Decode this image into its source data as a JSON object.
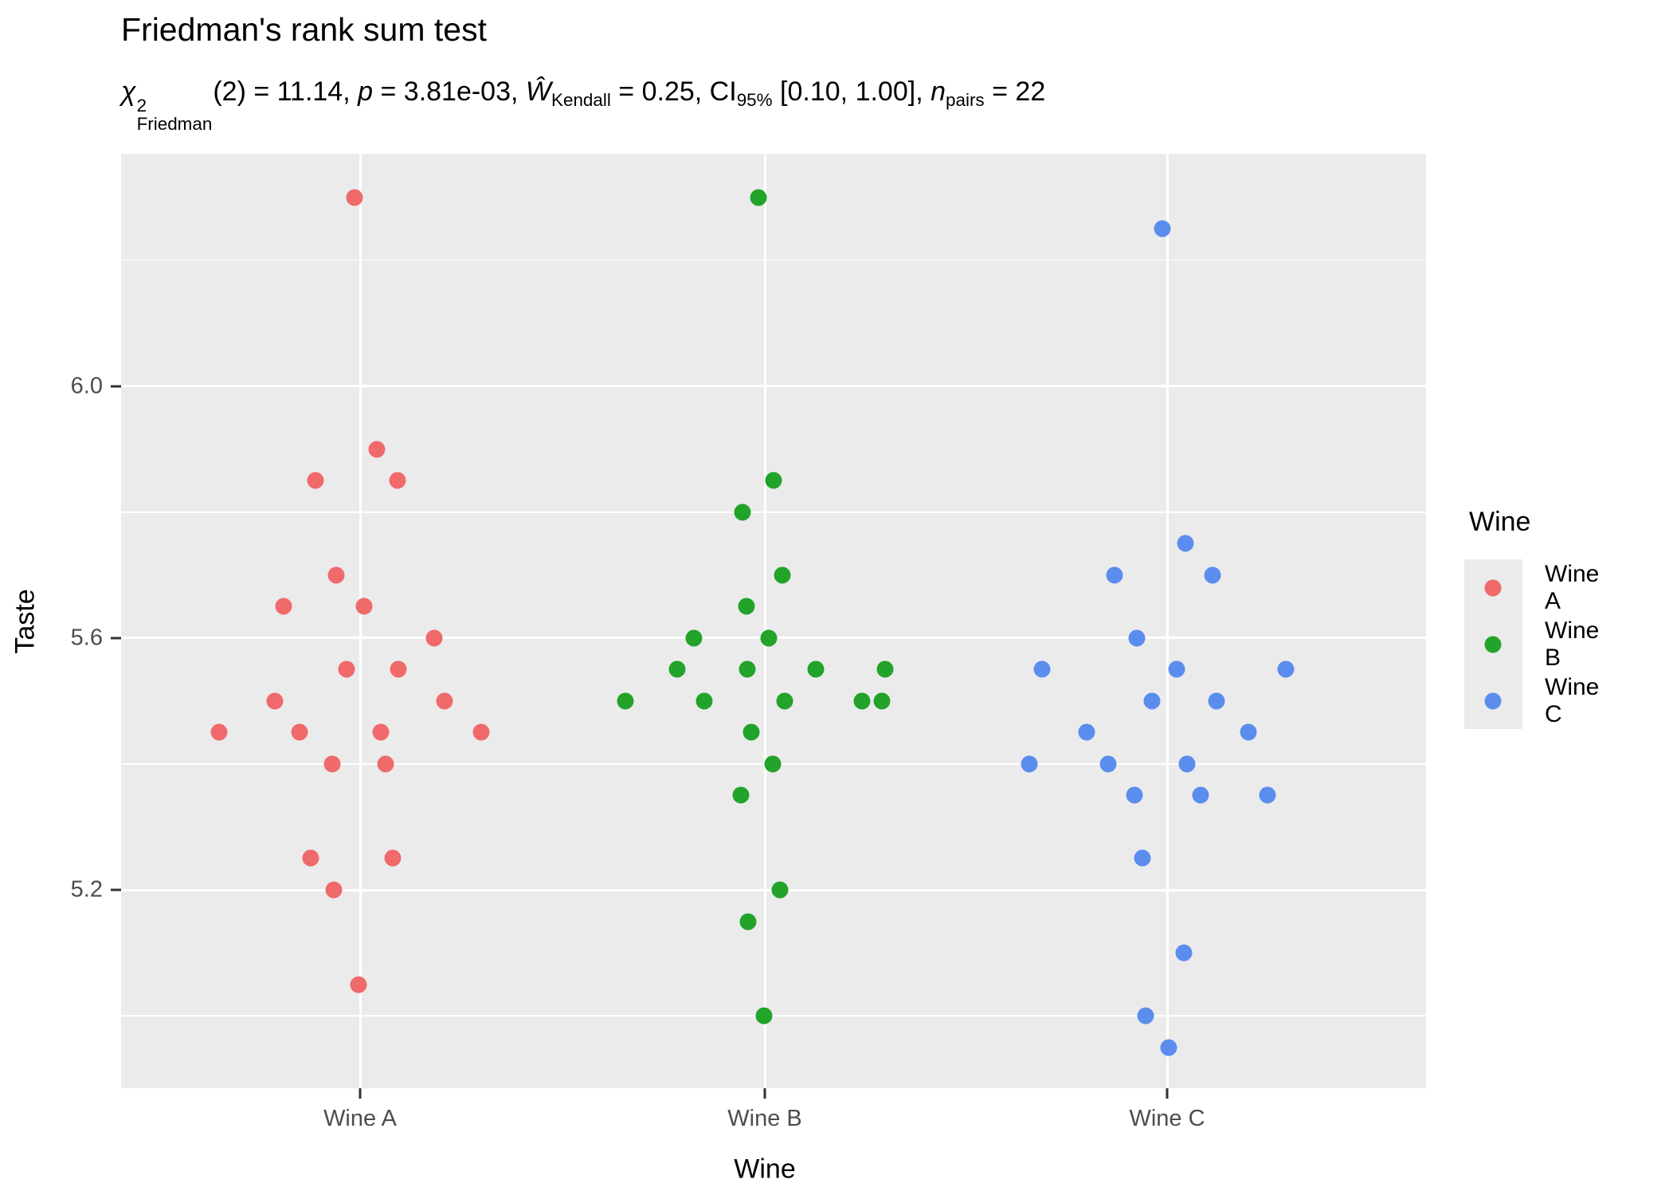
{
  "title": "Friedman's rank sum test",
  "subtitle_parts": [
    {
      "k": "i",
      "t": "χ"
    },
    {
      "k": "stk",
      "sup": "2",
      "sub": "Friedman"
    },
    {
      "k": "n",
      "t": "(2) = 11.14, "
    },
    {
      "k": "i",
      "t": "p"
    },
    {
      "k": "n",
      "t": " = 3.81e-03, "
    },
    {
      "k": "i",
      "t": "Ŵ"
    },
    {
      "k": "sb",
      "t": "Kendall"
    },
    {
      "k": "n",
      "t": " = 0.25, CI"
    },
    {
      "k": "sb",
      "t": "95%"
    },
    {
      "k": "n",
      "t": " [0.10, 1.00], "
    },
    {
      "k": "i",
      "t": "n"
    },
    {
      "k": "sb",
      "t": "pairs"
    },
    {
      "k": "n",
      "t": " = 22"
    }
  ],
  "colors": {
    "panel_bg": "#EBEBEB",
    "grid": "#FFFFFF",
    "tick_label": "#4D4D4D",
    "wine_a": "#F0696B",
    "wine_b": "#22A32A",
    "wine_c": "#5B8DEE"
  },
  "legend": {
    "title": "Wine",
    "items": [
      {
        "label": "Wine A",
        "color": "#F0696B"
      },
      {
        "label": "Wine B",
        "color": "#22A32A"
      },
      {
        "label": "Wine C",
        "color": "#5B8DEE"
      }
    ]
  },
  "chart_data": {
    "type": "scatter",
    "title": "Friedman's rank sum test",
    "xlabel": "Wine",
    "ylabel": "Taste",
    "categories": [
      "Wine A",
      "Wine B",
      "Wine C"
    ],
    "ylim": [
      4.885,
      6.369
    ],
    "y_major_ticks": [
      {
        "label": "6.0",
        "value": 6.0
      },
      {
        "label": "5.6",
        "value": 5.6
      },
      {
        "label": "5.2",
        "value": 5.2
      }
    ],
    "y_minor_gridlines": [
      6.2,
      5.8,
      5.4,
      5.0
    ],
    "grid": "white on grey panel",
    "legend_position": "right",
    "n_per_group": 22,
    "series": [
      {
        "name": "Wine A",
        "color": "#F0696B",
        "points": [
          [
            6.3,
            -7
          ],
          [
            5.9,
            21
          ],
          [
            5.85,
            -56
          ],
          [
            5.85,
            47
          ],
          [
            5.7,
            -30
          ],
          [
            5.65,
            -96
          ],
          [
            5.65,
            5
          ],
          [
            5.6,
            93
          ],
          [
            5.55,
            -17
          ],
          [
            5.55,
            48
          ],
          [
            5.5,
            -107
          ],
          [
            5.5,
            106
          ],
          [
            5.45,
            -177
          ],
          [
            5.45,
            -76
          ],
          [
            5.45,
            26
          ],
          [
            5.45,
            152
          ],
          [
            5.4,
            -35
          ],
          [
            5.4,
            32
          ],
          [
            5.25,
            -62
          ],
          [
            5.25,
            41
          ],
          [
            5.2,
            -33
          ],
          [
            5.05,
            -2
          ]
        ]
      },
      {
        "name": "Wine B",
        "color": "#22A32A",
        "points": [
          [
            6.3,
            -8
          ],
          [
            5.85,
            11
          ],
          [
            5.8,
            -28
          ],
          [
            5.7,
            22
          ],
          [
            5.65,
            -23
          ],
          [
            5.6,
            -89
          ],
          [
            5.6,
            5
          ],
          [
            5.55,
            -110
          ],
          [
            5.55,
            -22
          ],
          [
            5.55,
            64
          ],
          [
            5.55,
            151
          ],
          [
            5.5,
            -175
          ],
          [
            5.5,
            -76
          ],
          [
            5.5,
            25
          ],
          [
            5.5,
            122
          ],
          [
            5.5,
            147
          ],
          [
            5.45,
            -17
          ],
          [
            5.4,
            10
          ],
          [
            5.35,
            -30
          ],
          [
            5.2,
            19
          ],
          [
            5.15,
            -21
          ],
          [
            5.0,
            -1
          ]
        ]
      },
      {
        "name": "Wine C",
        "color": "#5B8DEE",
        "points": [
          [
            6.25,
            -6
          ],
          [
            5.75,
            23
          ],
          [
            5.7,
            -66
          ],
          [
            5.7,
            57
          ],
          [
            5.6,
            -38
          ],
          [
            5.55,
            -157
          ],
          [
            5.55,
            12
          ],
          [
            5.55,
            149
          ],
          [
            5.5,
            -19
          ],
          [
            5.5,
            62
          ],
          [
            5.45,
            -101
          ],
          [
            5.45,
            102
          ],
          [
            5.4,
            -173
          ],
          [
            5.4,
            -74
          ],
          [
            5.4,
            25
          ],
          [
            5.35,
            -41
          ],
          [
            5.35,
            42
          ],
          [
            5.35,
            126
          ],
          [
            5.25,
            -31
          ],
          [
            5.1,
            21
          ],
          [
            5.0,
            -27
          ],
          [
            4.95,
            2
          ]
        ]
      }
    ]
  }
}
